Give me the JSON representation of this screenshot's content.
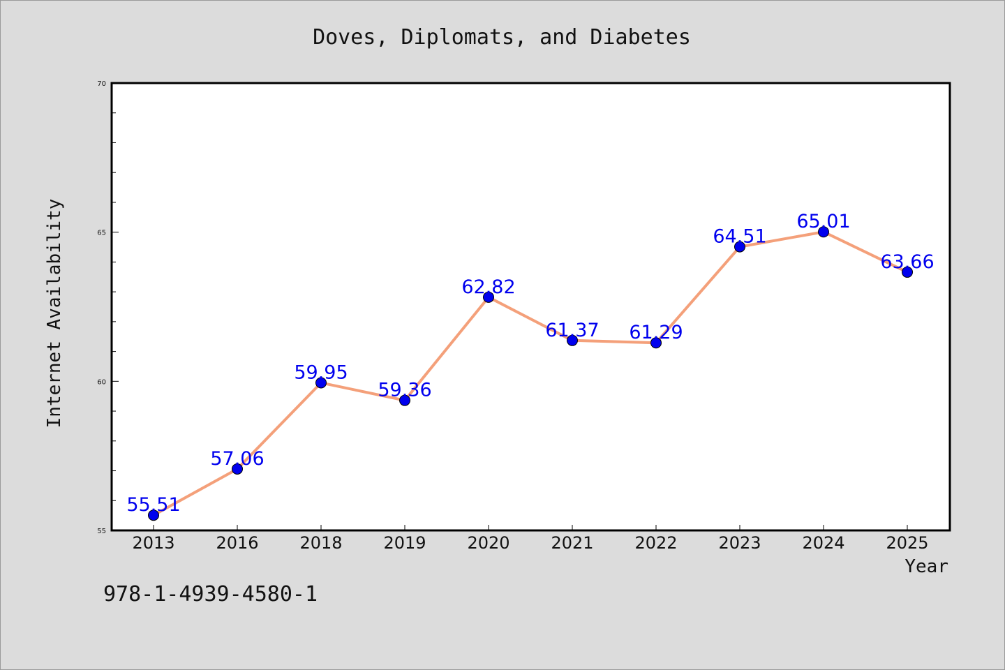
{
  "chart_data": {
    "type": "line",
    "title": "Doves, Diplomats, and Diabetes",
    "xlabel": "Year",
    "ylabel": "Internet Availability",
    "categories": [
      "2013",
      "2016",
      "2018",
      "2019",
      "2020",
      "2021",
      "2022",
      "2023",
      "2024",
      "2025"
    ],
    "series": [
      {
        "values": [
          55.51,
          57.06,
          59.95,
          59.36,
          62.82,
          61.37,
          61.29,
          64.51,
          65.01,
          63.66
        ],
        "labels": [
          "55.51",
          "57.06",
          "59.95",
          "59.36",
          "62.82",
          "61.37",
          "61.29",
          "64.51",
          "65.01",
          "63.66"
        ],
        "line_color": "#f4a07a",
        "marker_color": "#0000ee",
        "label_color": "#0000ee"
      }
    ],
    "ylim": [
      55,
      70
    ],
    "yticks_major": [
      55,
      60,
      65,
      70
    ],
    "yticks_minor_step": 1,
    "grid": false,
    "legend": "none"
  },
  "footer": {
    "isbn": "978-1-4939-4580-1"
  }
}
